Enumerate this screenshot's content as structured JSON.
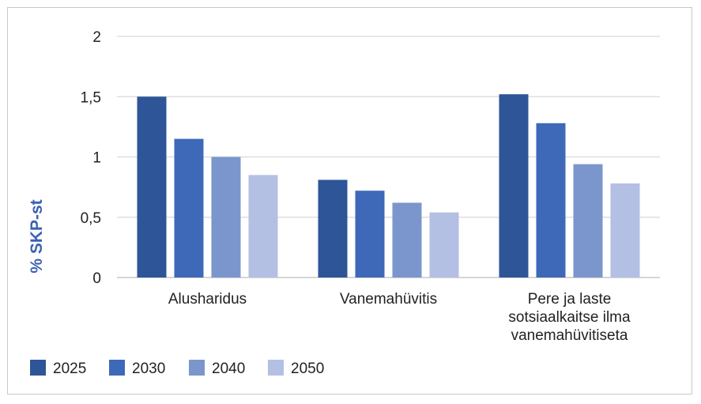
{
  "chart_data": {
    "type": "bar",
    "title": "",
    "xlabel": "",
    "ylabel": "% SKP-st",
    "ylim": [
      0,
      2
    ],
    "yticks": [
      0,
      0.5,
      1,
      1.5,
      2
    ],
    "ytick_labels": [
      "0",
      "0,5",
      "1",
      "1,5",
      "2"
    ],
    "grid": true,
    "legend_position": "bottom-left",
    "categories": [
      [
        "Alusharidus"
      ],
      [
        "Vanemahüvitis"
      ],
      [
        "Pere ja laste",
        "sotsiaalkaitse ilma",
        "vanemahüvitiseta"
      ]
    ],
    "series": [
      {
        "name": "2025",
        "color": "#2e5597",
        "values": [
          1.5,
          0.81,
          1.52
        ]
      },
      {
        "name": "2030",
        "color": "#3d69b8",
        "values": [
          1.15,
          0.72,
          1.28
        ]
      },
      {
        "name": "2040",
        "color": "#7b96cc",
        "values": [
          1.0,
          0.62,
          0.94
        ]
      },
      {
        "name": "2050",
        "color": "#b3c0e3",
        "values": [
          0.85,
          0.54,
          0.78
        ]
      }
    ]
  }
}
